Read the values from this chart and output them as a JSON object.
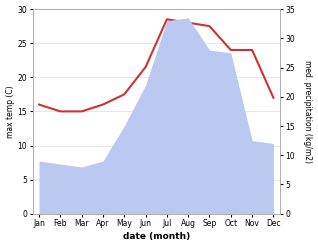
{
  "months": [
    "Jan",
    "Feb",
    "Mar",
    "Apr",
    "May",
    "Jun",
    "Jul",
    "Aug",
    "Sep",
    "Oct",
    "Nov",
    "Dec"
  ],
  "month_indices": [
    0,
    1,
    2,
    3,
    4,
    5,
    6,
    7,
    8,
    9,
    10,
    11
  ],
  "temperature": [
    16.0,
    15.0,
    15.0,
    16.0,
    17.5,
    21.5,
    28.5,
    28.0,
    27.5,
    24.0,
    24.0,
    17.0
  ],
  "precipitation": [
    9.0,
    8.5,
    8.0,
    9.0,
    15.0,
    22.0,
    33.0,
    33.5,
    28.0,
    27.5,
    12.5,
    12.0
  ],
  "temp_color": "#cc3333",
  "precip_fill_color": "#bbc8f0",
  "temp_ylim": [
    0,
    30
  ],
  "precip_ylim": [
    0,
    35
  ],
  "temp_yticks": [
    0,
    5,
    10,
    15,
    20,
    25,
    30
  ],
  "precip_yticks": [
    0,
    5,
    10,
    15,
    20,
    25,
    30,
    35
  ],
  "ylabel_left": "max temp (C)",
  "ylabel_right": "med. precipitation (kg/m2)",
  "xlabel": "date (month)",
  "background_color": "#ffffff"
}
